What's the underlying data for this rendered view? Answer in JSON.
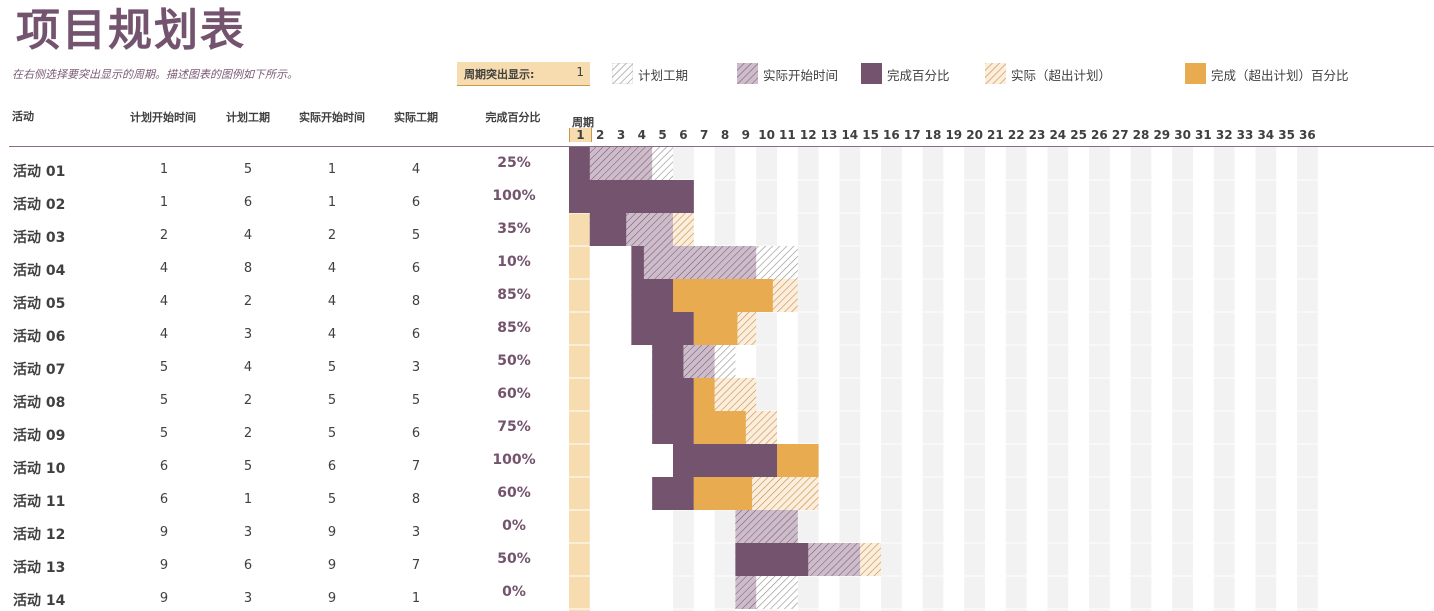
{
  "title": "项目规划表",
  "subtitle": "在右侧选择要突出显示的周期。描述图表的图例如下所示。",
  "highlight": {
    "label": "周期突出显示:",
    "value": "1"
  },
  "legend": [
    {
      "label": "计划工期",
      "pattern": "plan"
    },
    {
      "label": "实际开始时间",
      "pattern": "actual"
    },
    {
      "label": "完成百分比",
      "pattern": "complete"
    },
    {
      "label": "实际（超出计划）",
      "pattern": "over"
    },
    {
      "label": "完成（超出计划）百分比",
      "pattern": "completeover"
    }
  ],
  "headers": {
    "activity": "活动",
    "plan_start": "计划开始时间",
    "plan_duration": "计划工期",
    "actual_start": "实际开始时间",
    "actual_duration": "实际工期",
    "percent": "完成百分比",
    "period": "周期"
  },
  "periods": [
    "1",
    "2",
    "3",
    "4",
    "5",
    "6",
    "7",
    "8",
    "9",
    "10",
    "11",
    "12",
    "13",
    "14",
    "15",
    "16",
    "17",
    "18",
    "19",
    "20",
    "21",
    "22",
    "23",
    "24",
    "25",
    "26",
    "27",
    "28",
    "29",
    "30",
    "31",
    "32",
    "33",
    "34",
    "35",
    "36"
  ],
  "highlight_period": 1,
  "colors": {
    "accent": "#73536e",
    "plan_hatch": "#9a9a9a",
    "actual_fill": "#c7b3c3",
    "complete": "#73536e",
    "over_hatch": "#d4944a",
    "complete_over": "#e8ab4f",
    "highlight": "#f7dcb0",
    "stripe": "#f2f2f2"
  },
  "activities": [
    {
      "name": "活动 01",
      "plan_start": "1",
      "plan_duration": "5",
      "actual_start": "1",
      "actual_duration": "4",
      "percent": "25%"
    },
    {
      "name": "活动 02",
      "plan_start": "1",
      "plan_duration": "6",
      "actual_start": "1",
      "actual_duration": "6",
      "percent": "100%"
    },
    {
      "name": "活动 03",
      "plan_start": "2",
      "plan_duration": "4",
      "actual_start": "2",
      "actual_duration": "5",
      "percent": "35%"
    },
    {
      "name": "活动 04",
      "plan_start": "4",
      "plan_duration": "8",
      "actual_start": "4",
      "actual_duration": "6",
      "percent": "10%"
    },
    {
      "name": "活动 05",
      "plan_start": "4",
      "plan_duration": "2",
      "actual_start": "4",
      "actual_duration": "8",
      "percent": "85%"
    },
    {
      "name": "活动 06",
      "plan_start": "4",
      "plan_duration": "3",
      "actual_start": "4",
      "actual_duration": "6",
      "percent": "85%"
    },
    {
      "name": "活动 07",
      "plan_start": "5",
      "plan_duration": "4",
      "actual_start": "5",
      "actual_duration": "3",
      "percent": "50%"
    },
    {
      "name": "活动 08",
      "plan_start": "5",
      "plan_duration": "2",
      "actual_start": "5",
      "actual_duration": "5",
      "percent": "60%"
    },
    {
      "name": "活动 09",
      "plan_start": "5",
      "plan_duration": "2",
      "actual_start": "5",
      "actual_duration": "6",
      "percent": "75%"
    },
    {
      "name": "活动 10",
      "plan_start": "6",
      "plan_duration": "5",
      "actual_start": "6",
      "actual_duration": "7",
      "percent": "100%"
    },
    {
      "name": "活动 11",
      "plan_start": "6",
      "plan_duration": "1",
      "actual_start": "5",
      "actual_duration": "8",
      "percent": "60%"
    },
    {
      "name": "活动 12",
      "plan_start": "9",
      "plan_duration": "3",
      "actual_start": "9",
      "actual_duration": "3",
      "percent": "0%"
    },
    {
      "name": "活动 13",
      "plan_start": "9",
      "plan_duration": "6",
      "actual_start": "9",
      "actual_duration": "7",
      "percent": "50%"
    },
    {
      "name": "活动 14",
      "plan_start": "9",
      "plan_duration": "3",
      "actual_start": "9",
      "actual_duration": "1",
      "percent": "0%"
    }
  ]
}
